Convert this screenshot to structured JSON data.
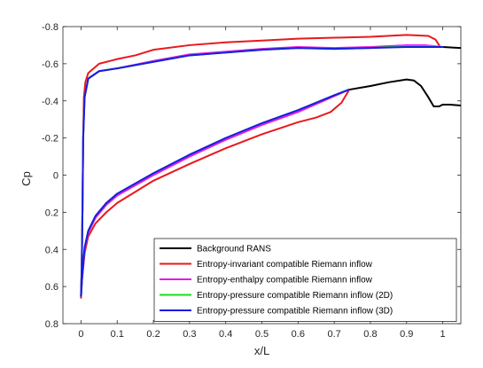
{
  "chart_data": {
    "type": "line",
    "title": "",
    "xlabel": "x/L",
    "ylabel": "Cp",
    "xlim": [
      -0.05,
      1.05
    ],
    "ylim": [
      -0.8,
      0.8
    ],
    "y_reversed": true,
    "xticks": [
      0,
      0.1,
      0.2,
      0.3,
      0.4,
      0.5,
      0.6,
      0.7,
      0.8,
      0.9,
      1
    ],
    "xtick_labels": [
      "0",
      "0.1",
      "0.2",
      "0.3",
      "0.4",
      "0.5",
      "0.6",
      "0.7",
      "0.8",
      "0.9",
      "1"
    ],
    "yticks": [
      -0.8,
      -0.6,
      -0.4,
      -0.2,
      0,
      0.2,
      0.4,
      0.6,
      0.8
    ],
    "ytick_labels": [
      "-0.8",
      "-0.6",
      "-0.4",
      "-0.2",
      "0",
      "0.2",
      "0.4",
      "0.6",
      "0.8"
    ],
    "grid": false,
    "legend_position": "bottom-right",
    "series": [
      {
        "name": "Background RANS",
        "color": "#000000",
        "points": [
          [
            0.74,
            -0.46
          ],
          [
            0.8,
            -0.48
          ],
          [
            0.85,
            -0.5
          ],
          [
            0.9,
            -0.515
          ],
          [
            0.92,
            -0.51
          ],
          [
            0.94,
            -0.48
          ],
          [
            0.96,
            -0.42
          ],
          [
            0.975,
            -0.37
          ],
          [
            0.99,
            -0.37
          ],
          [
            1.0,
            -0.38
          ],
          [
            1.02,
            -0.38
          ],
          [
            1.05,
            -0.375
          ]
        ]
      },
      {
        "name": "Background RANS",
        "color": "#000000",
        "points": [
          [
            0.9,
            -0.7
          ],
          [
            0.95,
            -0.695
          ],
          [
            1.0,
            -0.69
          ],
          [
            1.05,
            -0.685
          ]
        ]
      },
      {
        "name": "Entropy-invariant compatible Riemann inflow",
        "color": "#e8191c",
        "points": [
          [
            0.0,
            0.66
          ],
          [
            0.002,
            0.5
          ],
          [
            0.004,
            0.2
          ],
          [
            0.006,
            -0.2
          ],
          [
            0.008,
            -0.42
          ],
          [
            0.012,
            -0.5
          ],
          [
            0.02,
            -0.55
          ],
          [
            0.05,
            -0.6
          ],
          [
            0.1,
            -0.625
          ],
          [
            0.15,
            -0.645
          ],
          [
            0.2,
            -0.675
          ],
          [
            0.3,
            -0.7
          ],
          [
            0.4,
            -0.715
          ],
          [
            0.5,
            -0.725
          ],
          [
            0.6,
            -0.735
          ],
          [
            0.7,
            -0.74
          ],
          [
            0.8,
            -0.745
          ],
          [
            0.9,
            -0.755
          ],
          [
            0.96,
            -0.75
          ],
          [
            0.98,
            -0.73
          ],
          [
            0.99,
            -0.7
          ]
        ]
      },
      {
        "name": "Entropy-invariant compatible Riemann inflow",
        "color": "#e8191c",
        "points": [
          [
            0.0,
            0.66
          ],
          [
            0.003,
            0.56
          ],
          [
            0.01,
            0.42
          ],
          [
            0.02,
            0.33
          ],
          [
            0.04,
            0.26
          ],
          [
            0.07,
            0.2
          ],
          [
            0.1,
            0.15
          ],
          [
            0.15,
            0.09
          ],
          [
            0.2,
            0.03
          ],
          [
            0.3,
            -0.06
          ],
          [
            0.4,
            -0.145
          ],
          [
            0.5,
            -0.22
          ],
          [
            0.6,
            -0.285
          ],
          [
            0.65,
            -0.31
          ],
          [
            0.69,
            -0.34
          ],
          [
            0.72,
            -0.39
          ],
          [
            0.74,
            -0.455
          ]
        ]
      },
      {
        "name": "Entropy-enthalpy compatible Riemann inflow",
        "color": "#e41be4",
        "points": [
          [
            0.0,
            0.65
          ],
          [
            0.002,
            0.5
          ],
          [
            0.004,
            0.2
          ],
          [
            0.006,
            -0.2
          ],
          [
            0.01,
            -0.42
          ],
          [
            0.02,
            -0.52
          ],
          [
            0.05,
            -0.56
          ],
          [
            0.1,
            -0.575
          ],
          [
            0.2,
            -0.615
          ],
          [
            0.3,
            -0.65
          ],
          [
            0.4,
            -0.665
          ],
          [
            0.5,
            -0.68
          ],
          [
            0.6,
            -0.69
          ],
          [
            0.7,
            -0.685
          ],
          [
            0.8,
            -0.69
          ],
          [
            0.9,
            -0.7
          ],
          [
            0.95,
            -0.7
          ],
          [
            1.0,
            -0.69
          ]
        ]
      },
      {
        "name": "Entropy-enthalpy compatible Riemann inflow",
        "color": "#e41be4",
        "points": [
          [
            0.0,
            0.65
          ],
          [
            0.003,
            0.55
          ],
          [
            0.01,
            0.4
          ],
          [
            0.02,
            0.31
          ],
          [
            0.04,
            0.23
          ],
          [
            0.07,
            0.16
          ],
          [
            0.1,
            0.11
          ],
          [
            0.2,
            0.0
          ],
          [
            0.3,
            -0.1
          ],
          [
            0.4,
            -0.19
          ],
          [
            0.5,
            -0.27
          ],
          [
            0.6,
            -0.34
          ],
          [
            0.7,
            -0.425
          ],
          [
            0.74,
            -0.46
          ]
        ]
      },
      {
        "name": "Entropy-pressure compatible Riemann inflow (2D)",
        "color": "#1adf1a",
        "points": [
          [
            0.0,
            0.65
          ],
          [
            0.002,
            0.5
          ],
          [
            0.004,
            0.2
          ],
          [
            0.006,
            -0.2
          ],
          [
            0.01,
            -0.42
          ],
          [
            0.02,
            -0.52
          ],
          [
            0.05,
            -0.56
          ],
          [
            0.1,
            -0.575
          ],
          [
            0.2,
            -0.61
          ],
          [
            0.3,
            -0.645
          ],
          [
            0.4,
            -0.66
          ],
          [
            0.5,
            -0.675
          ],
          [
            0.6,
            -0.685
          ],
          [
            0.7,
            -0.68
          ],
          [
            0.8,
            -0.685
          ],
          [
            0.9,
            -0.695
          ],
          [
            0.95,
            -0.695
          ],
          [
            1.0,
            -0.69
          ]
        ]
      },
      {
        "name": "Entropy-pressure compatible Riemann inflow (2D)",
        "color": "#1adf1a",
        "points": [
          [
            0.0,
            0.65
          ],
          [
            0.003,
            0.55
          ],
          [
            0.01,
            0.39
          ],
          [
            0.02,
            0.3
          ],
          [
            0.04,
            0.22
          ],
          [
            0.07,
            0.15
          ],
          [
            0.1,
            0.1
          ],
          [
            0.2,
            -0.01
          ],
          [
            0.3,
            -0.11
          ],
          [
            0.4,
            -0.2
          ],
          [
            0.5,
            -0.28
          ],
          [
            0.6,
            -0.35
          ],
          [
            0.7,
            -0.43
          ],
          [
            0.74,
            -0.46
          ]
        ]
      },
      {
        "name": "Entropy-pressure compatible Riemann inflow (3D)",
        "color": "#1a1ae6",
        "points": [
          [
            0.0,
            0.65
          ],
          [
            0.002,
            0.5
          ],
          [
            0.004,
            0.2
          ],
          [
            0.006,
            -0.2
          ],
          [
            0.01,
            -0.42
          ],
          [
            0.02,
            -0.52
          ],
          [
            0.05,
            -0.56
          ],
          [
            0.1,
            -0.575
          ],
          [
            0.2,
            -0.61
          ],
          [
            0.3,
            -0.645
          ],
          [
            0.4,
            -0.66
          ],
          [
            0.5,
            -0.675
          ],
          [
            0.6,
            -0.685
          ],
          [
            0.7,
            -0.68
          ],
          [
            0.8,
            -0.685
          ],
          [
            0.9,
            -0.69
          ],
          [
            0.95,
            -0.69
          ],
          [
            1.0,
            -0.69
          ]
        ]
      },
      {
        "name": "Entropy-pressure compatible Riemann inflow (3D)",
        "color": "#1a1ae6",
        "points": [
          [
            0.0,
            0.65
          ],
          [
            0.003,
            0.55
          ],
          [
            0.01,
            0.39
          ],
          [
            0.02,
            0.3
          ],
          [
            0.04,
            0.22
          ],
          [
            0.07,
            0.15
          ],
          [
            0.1,
            0.1
          ],
          [
            0.2,
            -0.01
          ],
          [
            0.3,
            -0.11
          ],
          [
            0.4,
            -0.2
          ],
          [
            0.5,
            -0.28
          ],
          [
            0.6,
            -0.35
          ],
          [
            0.7,
            -0.43
          ],
          [
            0.74,
            -0.46
          ]
        ]
      }
    ],
    "legend": [
      {
        "label": "Background RANS",
        "color": "#000000"
      },
      {
        "label": "Entropy-invariant compatible Riemann inflow",
        "color": "#e8191c"
      },
      {
        "label": "Entropy-enthalpy compatible Riemann inflow",
        "color": "#e41be4"
      },
      {
        "label": "Entropy-pressure compatible Riemann inflow (2D)",
        "color": "#1adf1a"
      },
      {
        "label": "Entropy-pressure compatible Riemann inflow (3D)",
        "color": "#1a1ae6"
      }
    ]
  }
}
